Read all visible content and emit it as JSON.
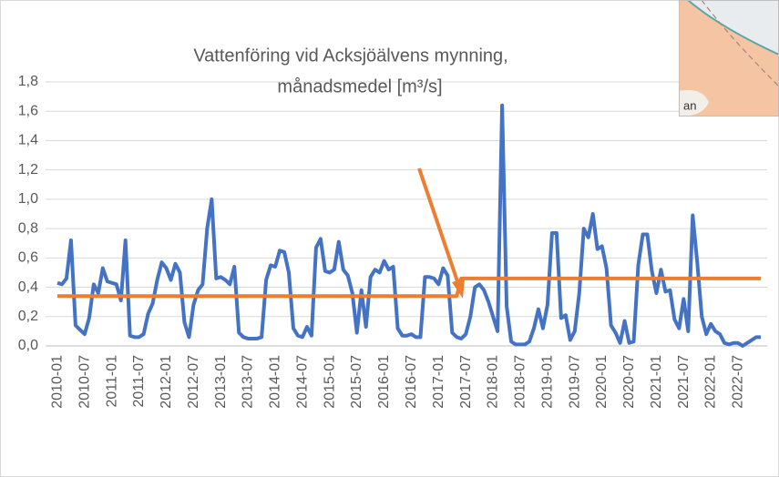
{
  "chart_data": {
    "type": "line",
    "title_lines": [
      "Vattenföring vid Acksjöälvens mynning,",
      "månadsmedel [m³/s]"
    ],
    "inset_text": "an",
    "categories": [
      "2010-01",
      null,
      null,
      null,
      null,
      null,
      "2010-07",
      null,
      null,
      null,
      null,
      null,
      "2011-01",
      null,
      null,
      null,
      null,
      null,
      "2011-07",
      null,
      null,
      null,
      null,
      null,
      "2012-01",
      null,
      null,
      null,
      null,
      null,
      "2012-07",
      null,
      null,
      null,
      null,
      null,
      "2013-01",
      null,
      null,
      null,
      null,
      null,
      "2013-07",
      null,
      null,
      null,
      null,
      null,
      "2014-01",
      null,
      null,
      null,
      null,
      null,
      "2014-07",
      null,
      null,
      null,
      null,
      null,
      "2015-01",
      null,
      null,
      null,
      null,
      null,
      "2015-07",
      null,
      null,
      null,
      null,
      null,
      "2016-01",
      null,
      null,
      null,
      null,
      null,
      "2016-07",
      null,
      null,
      null,
      null,
      null,
      "2017-01",
      null,
      null,
      null,
      null,
      null,
      "2017-07",
      null,
      null,
      null,
      null,
      null,
      "2018-01",
      null,
      null,
      null,
      null,
      null,
      "2018-07",
      null,
      null,
      null,
      null,
      null,
      "2019-01",
      null,
      null,
      null,
      null,
      null,
      "2019-07",
      null,
      null,
      null,
      null,
      null,
      "2020-01",
      null,
      null,
      null,
      null,
      null,
      "2020-07",
      null,
      null,
      null,
      null,
      null,
      "2021-01",
      null,
      null,
      null,
      null,
      null,
      "2021-07",
      null,
      null,
      null,
      null,
      null,
      "2022-01",
      null,
      null,
      null,
      null,
      null,
      "2022-07",
      null,
      null,
      null,
      null,
      null
    ],
    "series": [
      {
        "color": "#4472c4",
        "width": 4,
        "values": [
          0.43,
          0.42,
          0.46,
          0.72,
          0.14,
          0.11,
          0.08,
          0.19,
          0.42,
          0.36,
          0.53,
          0.44,
          0.43,
          0.42,
          0.31,
          0.72,
          0.07,
          0.06,
          0.06,
          0.08,
          0.22,
          0.29,
          0.45,
          0.57,
          0.53,
          0.45,
          0.56,
          0.5,
          0.16,
          0.06,
          0.28,
          0.38,
          0.42,
          0.8,
          1.0,
          0.46,
          0.47,
          0.45,
          0.42,
          0.54,
          0.09,
          0.06,
          0.05,
          0.05,
          0.05,
          0.06,
          0.45,
          0.55,
          0.54,
          0.65,
          0.64,
          0.5,
          0.12,
          0.07,
          0.06,
          0.13,
          0.07,
          0.67,
          0.73,
          0.51,
          0.5,
          0.52,
          0.71,
          0.52,
          0.48,
          0.36,
          0.09,
          0.38,
          0.13,
          0.47,
          0.52,
          0.5,
          0.58,
          0.52,
          0.54,
          0.12,
          0.07,
          0.07,
          0.08,
          0.06,
          0.06,
          0.47,
          0.47,
          0.46,
          0.42,
          0.53,
          0.48,
          0.09,
          0.06,
          0.05,
          0.08,
          0.2,
          0.4,
          0.42,
          0.38,
          0.3,
          0.2,
          0.1,
          1.64,
          0.27,
          0.03,
          0.01,
          0.01,
          0.01,
          0.03,
          0.12,
          0.25,
          0.12,
          0.28,
          0.77,
          0.77,
          0.19,
          0.21,
          0.04,
          0.1,
          0.36,
          0.8,
          0.74,
          0.9,
          0.66,
          0.68,
          0.53,
          0.14,
          0.09,
          0.02,
          0.17,
          0.02,
          0.03,
          0.55,
          0.76,
          0.76,
          0.51,
          0.36,
          0.52,
          0.37,
          0.38,
          0.18,
          0.12,
          0.32,
          0.1,
          0.89,
          0.57,
          0.2,
          0.08,
          0.15,
          0.1,
          0.08,
          0.02,
          0.01,
          0.02,
          0.02,
          0.0,
          0.02,
          0.04,
          0.06,
          0.06
        ]
      },
      {
        "color": "#ed7d31",
        "width": 4,
        "values": [
          0.34,
          0.34,
          0.34,
          0.34,
          0.34,
          0.34,
          0.34,
          0.34,
          0.34,
          0.34,
          0.34,
          0.34,
          0.34,
          0.34,
          0.34,
          0.34,
          0.34,
          0.34,
          0.34,
          0.34,
          0.34,
          0.34,
          0.34,
          0.34,
          0.34,
          0.34,
          0.34,
          0.34,
          0.34,
          0.34,
          0.34,
          0.34,
          0.34,
          0.34,
          0.34,
          0.34,
          0.34,
          0.34,
          0.34,
          0.34,
          0.34,
          0.34,
          0.34,
          0.34,
          0.34,
          0.34,
          0.34,
          0.34,
          0.34,
          0.34,
          0.34,
          0.34,
          0.34,
          0.34,
          0.34,
          0.34,
          0.34,
          0.34,
          0.34,
          0.34,
          0.34,
          0.34,
          0.34,
          0.34,
          0.34,
          0.34,
          0.34,
          0.34,
          0.34,
          0.34,
          0.34,
          0.34,
          0.34,
          0.34,
          0.34,
          0.34,
          0.34,
          0.34,
          0.34,
          0.34,
          0.34,
          0.34,
          0.34,
          0.34,
          0.34,
          0.34,
          0.34,
          0.34,
          0.34,
          0.46,
          0.46,
          0.46,
          0.46,
          0.46,
          0.46,
          0.46,
          0.46,
          0.46,
          0.46,
          0.46,
          0.46,
          0.46,
          0.46,
          0.46,
          0.46,
          0.46,
          0.46,
          0.46,
          0.46,
          0.46,
          0.46,
          0.46,
          0.46,
          0.46,
          0.46,
          0.46,
          0.46,
          0.46,
          0.46,
          0.46,
          0.46,
          0.46,
          0.46,
          0.46,
          0.46,
          0.46,
          0.46,
          0.46,
          0.46,
          0.46,
          0.46,
          0.46,
          0.46,
          0.46,
          0.46,
          0.46,
          0.46,
          0.46,
          0.46,
          0.46,
          0.46,
          0.46,
          0.46,
          0.46,
          0.46,
          0.46,
          0.46,
          0.46,
          0.46,
          0.46,
          0.46,
          0.46,
          0.46,
          0.46,
          0.46,
          0.46
        ]
      }
    ],
    "ylim": [
      0,
      1.8
    ],
    "yticks": [
      {
        "value": 0,
        "label": "0,0"
      },
      {
        "value": 0.2,
        "label": "0,2"
      },
      {
        "value": 0.4,
        "label": "0,4"
      },
      {
        "value": 0.6,
        "label": "0,6"
      },
      {
        "value": 0.8,
        "label": "0,8"
      },
      {
        "value": 1.0,
        "label": "1,0"
      },
      {
        "value": 1.2,
        "label": "1,2"
      },
      {
        "value": 1.4,
        "label": "1,4"
      },
      {
        "value": 1.6,
        "label": "1,6"
      },
      {
        "value": 1.8,
        "label": "1,8"
      }
    ],
    "grid": true
  }
}
